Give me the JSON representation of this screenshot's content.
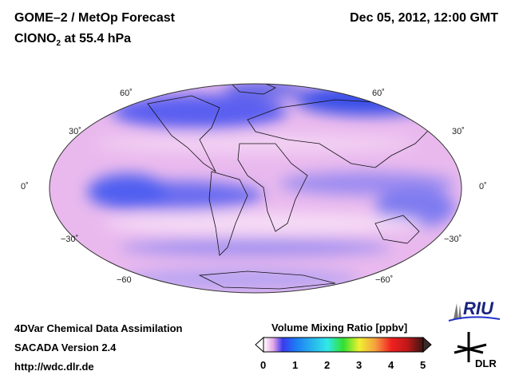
{
  "header": {
    "title": "GOME–2 / MetOp Forecast",
    "species_prefix": "ClONO",
    "species_sub": "2",
    "species_suffix": " at 55.4 hPa",
    "datetime": "Dec 05, 2012, 12:00 GMT"
  },
  "map": {
    "lat_labels_left": [
      "60˚",
      "30˚",
      "0˚",
      "−30˚",
      "−60"
    ],
    "lat_labels_right": [
      "60˚",
      "30˚",
      "0˚",
      "−30˚",
      "−60˚"
    ]
  },
  "footer": {
    "line1": "4DVar Chemical Data Assimilation",
    "line2": "SACADA Version 2.4",
    "line3": "http://wdc.dlr.de"
  },
  "colorbar": {
    "title": "Volume Mixing Ratio [ppbv]",
    "ticks": [
      "0",
      "1",
      "2",
      "3",
      "4",
      "5"
    ],
    "range": [
      0,
      5
    ]
  },
  "logos": {
    "riu": "RIU",
    "dlr": "DLR"
  }
}
